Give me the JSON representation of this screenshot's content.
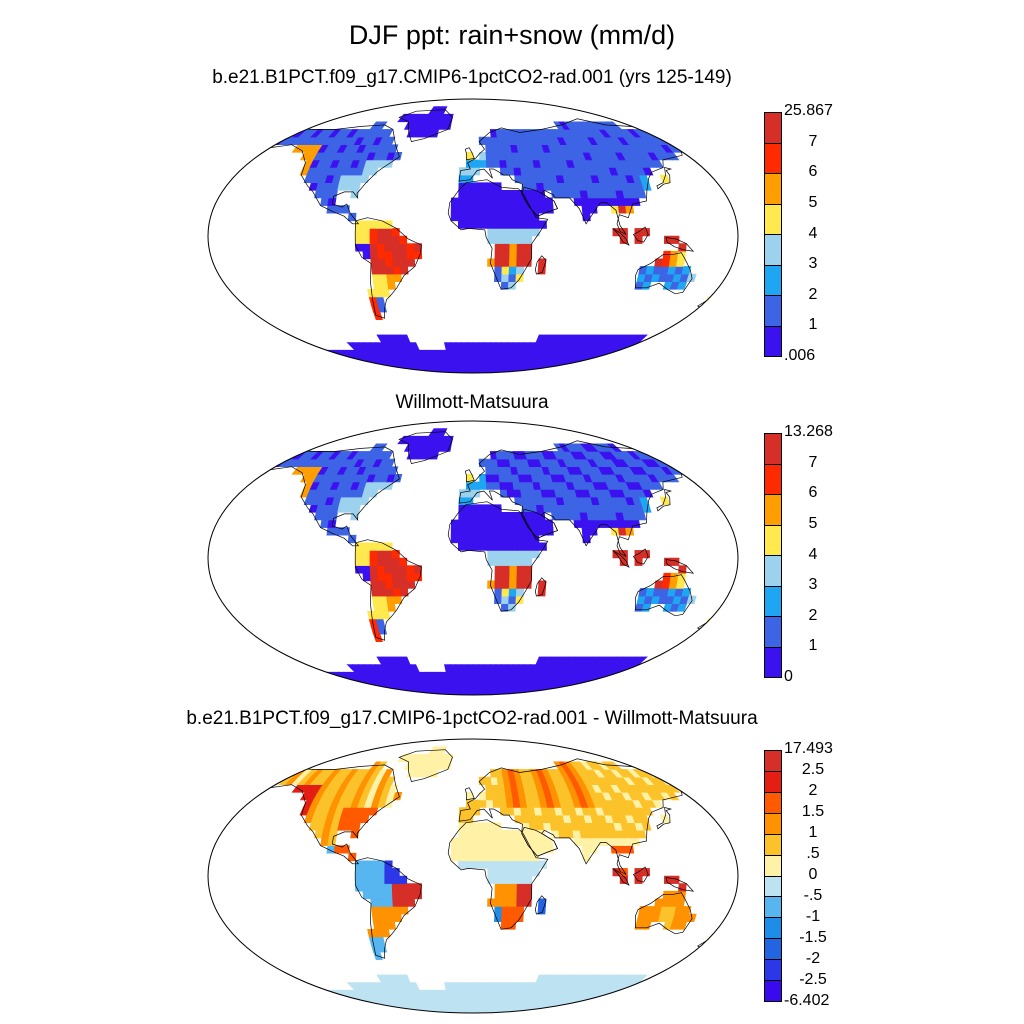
{
  "main_title": "DJF ppt: rain+snow (mm/d)",
  "panels": [
    {
      "title": "b.e21.B1PCT.f09_g17.CMIP6-1pctCO2-rad.001 (yrs 125-149)",
      "palette": "model",
      "colorbar": {
        "labels": [
          "25.867",
          "7",
          "6",
          "5",
          "4",
          "3",
          "2",
          "1",
          ".006"
        ],
        "colors": [
          "#d62f27",
          "#ff2a00",
          "#ff9e00",
          "#ffe94f",
          "#9dd2ee",
          "#1ea6f2",
          "#3d64e4",
          "#3b12ef"
        ]
      }
    },
    {
      "title": "Willmott-Matsuura",
      "palette": "obs",
      "colorbar": {
        "labels": [
          "13.268",
          "7",
          "6",
          "5",
          "4",
          "3",
          "2",
          "1",
          "0"
        ],
        "colors": [
          "#d62f27",
          "#ff2a00",
          "#ff9e00",
          "#ffe94f",
          "#9dd2ee",
          "#1ea6f2",
          "#3d64e4",
          "#3b12ef"
        ]
      }
    },
    {
      "title": "b.e21.B1PCT.f09_g17.CMIP6-1pctCO2-rad.001 - Willmott-Matsuura",
      "palette": "diff",
      "colorbar": {
        "labels": [
          "17.493",
          "2.5",
          "2",
          "1.5",
          "1",
          ".5",
          "0",
          "-.5",
          "-1",
          "-1.5",
          "-2",
          "-2.5",
          "-6.402"
        ],
        "colors": [
          "#d62f27",
          "#e41e12",
          "#ff5a00",
          "#ff9200",
          "#fbc22a",
          "#fff2a6",
          "#bde2f2",
          "#57b5ef",
          "#1e8de8",
          "#2364e1",
          "#2c37e8",
          "#3a0aee"
        ]
      }
    }
  ]
}
